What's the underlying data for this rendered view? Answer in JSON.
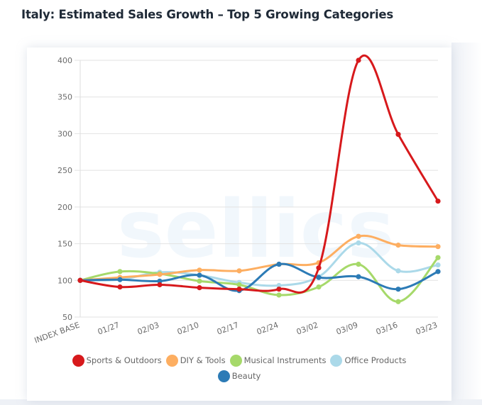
{
  "title": "Italy: Estimated Sales Growth – Top 5 Growing Categories",
  "watermark": "sellics",
  "chart_data": {
    "type": "line",
    "title": "Italy: Estimated Sales Growth – Top 5 Growing Categories",
    "xlabel": "",
    "ylabel": "",
    "categories": [
      "INDEX BASE",
      "01/27",
      "02/03",
      "02/10",
      "02/17",
      "02/24",
      "03/02",
      "03/09",
      "03/16",
      "03/23"
    ],
    "ylim": [
      50,
      400
    ],
    "yticks": [
      50,
      100,
      150,
      200,
      250,
      300,
      350,
      400
    ],
    "grid": true,
    "legend_position": "bottom",
    "series": [
      {
        "name": "Sports & Outdoors",
        "color": "#d7191c",
        "values": [
          100,
          91,
          94,
          90,
          88,
          88,
          117,
          400,
          299,
          208
        ]
      },
      {
        "name": "DIY & Tools",
        "color": "#fdae61",
        "values": [
          100,
          104,
          108,
          114,
          113,
          122,
          124,
          160,
          148,
          146
        ]
      },
      {
        "name": "Musical Instruments",
        "color": "#a6d96a",
        "values": [
          100,
          112,
          109,
          99,
          94,
          80,
          91,
          122,
          71,
          131
        ]
      },
      {
        "name": "Office Products",
        "color": "#abd9e9",
        "values": [
          100,
          101,
          111,
          107,
          97,
          93,
          105,
          151,
          113,
          121
        ]
      },
      {
        "name": "Beauty",
        "color": "#2c7bb6",
        "values": [
          100,
          101,
          99,
          107,
          86,
          122,
          104,
          105,
          88,
          112
        ]
      }
    ]
  },
  "legend": {
    "row1": [
      {
        "label": "Sports & Outdoors",
        "color": "#d7191c"
      },
      {
        "label": "DIY & Tools",
        "color": "#fdae61"
      },
      {
        "label": "Musical Instruments",
        "color": "#a6d96a"
      },
      {
        "label": "Office Products",
        "color": "#abd9e9"
      }
    ],
    "row2": [
      {
        "label": "Beauty",
        "color": "#2c7bb6"
      }
    ]
  }
}
